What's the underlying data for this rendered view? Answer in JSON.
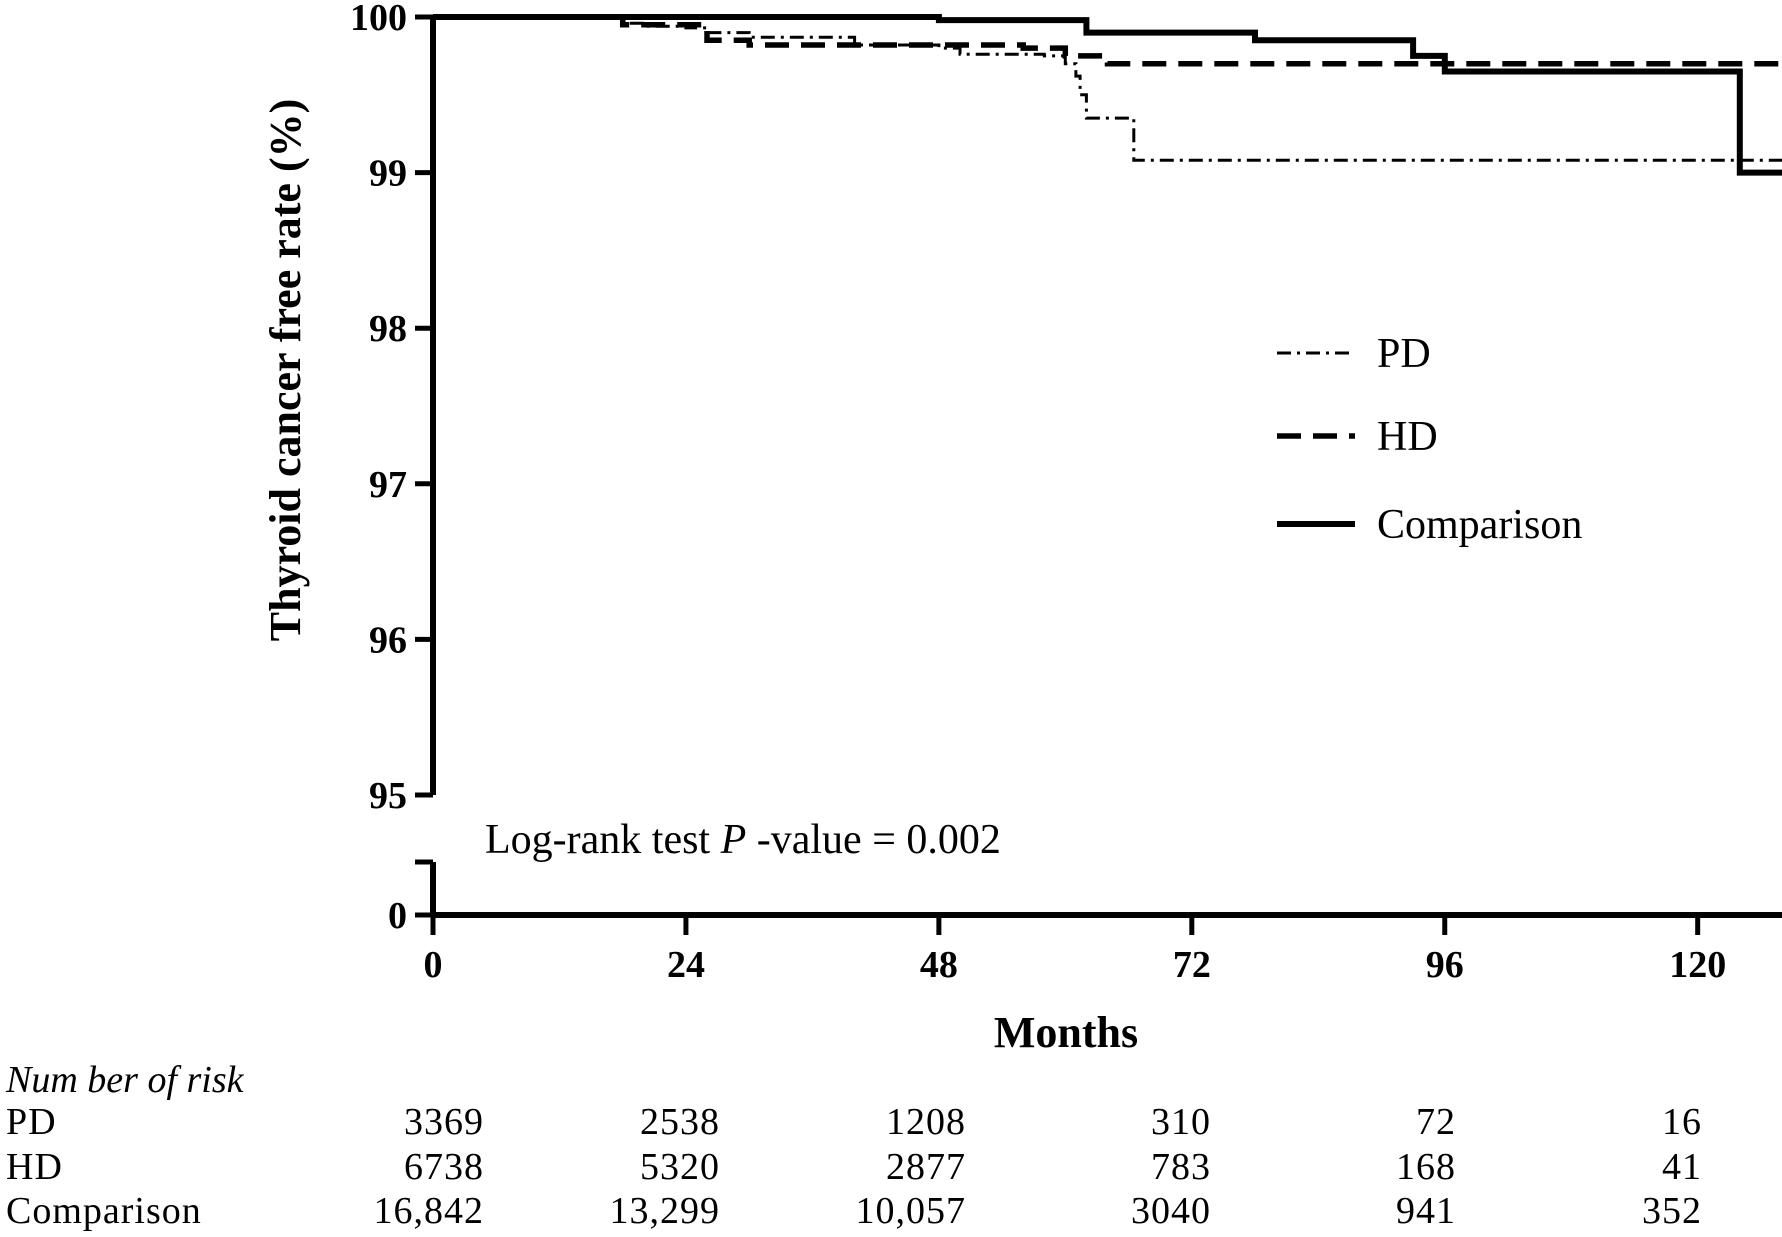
{
  "chart_data": {
    "type": "line",
    "title": "",
    "xlabel": "Months",
    "ylabel": "Thyroid cancer free rate (%)",
    "x_ticks": [
      0,
      24,
      48,
      72,
      96,
      120
    ],
    "x_tick_labels": [
      "0",
      "24",
      "48",
      "72",
      "96",
      "120"
    ],
    "xlim": [
      0,
      128
    ],
    "y_ticks": [
      95,
      96,
      97,
      98,
      99,
      100
    ],
    "y_tick_labels": [
      "95",
      "96",
      "97",
      "98",
      "99",
      "100"
    ],
    "y_zero_label": "0",
    "ylim": [
      95,
      100
    ],
    "y_axis_break": true,
    "grid": false,
    "legend_position": "right",
    "series": [
      {
        "name": "PD",
        "line_style": "dash-dot",
        "x": [
          0,
          16,
          18,
          20,
          24,
          26,
          30,
          40,
          48,
          50,
          58,
          60,
          61,
          61.4,
          62,
          66,
          66.5,
          110,
          128
        ],
        "y": [
          100,
          100,
          99.96,
          99.94,
          99.93,
          99.9,
          99.87,
          99.82,
          99.8,
          99.76,
          99.75,
          99.7,
          99.62,
          99.5,
          99.35,
          99.35,
          99.08,
          99.08,
          99.08
        ]
      },
      {
        "name": "HD",
        "line_style": "dashed",
        "x": [
          0,
          16,
          18,
          24,
          26,
          30,
          56,
          60,
          64,
          128
        ],
        "y": [
          100,
          100,
          99.95,
          99.95,
          99.85,
          99.82,
          99.8,
          99.75,
          99.7,
          99.7
        ]
      },
      {
        "name": "Comparison",
        "line_style": "solid",
        "x": [
          0,
          24,
          48,
          62,
          78,
          93,
          96,
          124,
          128
        ],
        "y": [
          100,
          100,
          99.98,
          99.9,
          99.85,
          99.75,
          99.65,
          99.0,
          99.0
        ]
      }
    ],
    "annotation": {
      "text_before": "Log-rank test ",
      "text_italic": "P",
      "text_after": " -value = 0.002"
    },
    "risk_table": {
      "title": "Num ber of risk",
      "months": [
        0,
        24,
        48,
        72,
        96,
        120
      ],
      "rows": [
        {
          "label": "PD",
          "values": [
            "3369",
            "2538",
            "1208",
            "310",
            "72",
            "16"
          ]
        },
        {
          "label": "HD",
          "values": [
            "6738",
            "5320",
            "2877",
            "783",
            "168",
            "41"
          ]
        },
        {
          "label": "Comparison",
          "values": [
            "16,842",
            "13,299",
            "10,057",
            "3040",
            "941",
            "352"
          ]
        }
      ]
    }
  },
  "colors": {
    "line": "#000000",
    "background": "#ffffff"
  }
}
